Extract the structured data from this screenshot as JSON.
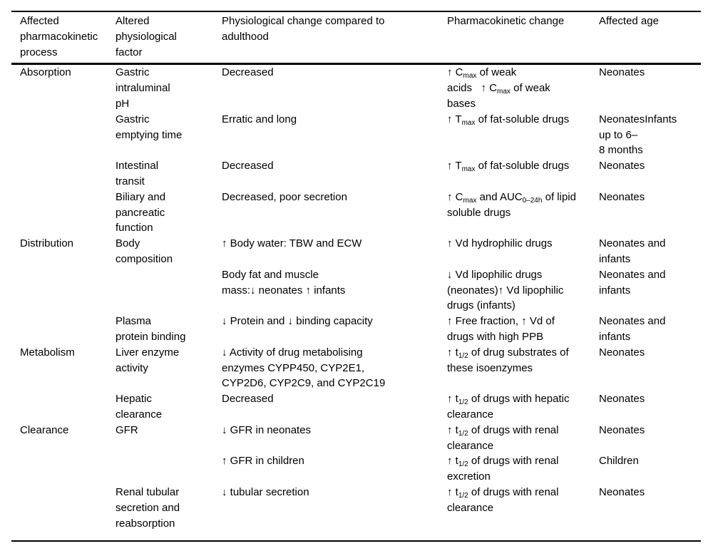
{
  "colors": {
    "text": "#000000",
    "background": "#ffffff",
    "rule": "#000000"
  },
  "table": {
    "columns": [
      {
        "name": "affected-pharmacokinetic-process",
        "label": "Affected pharmacokinetic process"
      },
      {
        "name": "altered-physiological-factor",
        "label": "Altered physiological factor"
      },
      {
        "name": "physiological-change",
        "label": "Physiological change compared to adulthood"
      },
      {
        "name": "pharmacokinetic-change",
        "label": "Pharmacokinetic change"
      },
      {
        "name": "affected-age",
        "label": "Affected age"
      }
    ],
    "rows": [
      {
        "cells": [
          "Absorption",
          "Gastric intraluminal pH",
          "Decreased",
          [
            {
              "t": "↑ C"
            },
            {
              "sub": "max"
            },
            {
              "t": " of weak acids   ↑ C"
            },
            {
              "sub": "max"
            },
            {
              "t": " of weak bases"
            }
          ],
          "Neonates"
        ]
      },
      {
        "cells": [
          "",
          "Gastric emptying time",
          "Erratic and long",
          [
            {
              "t": "↑ T"
            },
            {
              "sub": "max"
            },
            {
              "t": " of fat-soluble drugs"
            }
          ],
          [
            {
              "t": "NeonatesInfants"
            },
            {
              "br": true
            },
            {
              "t": "up to 6–"
            },
            {
              "br": true
            },
            {
              "t": "8 months"
            }
          ]
        ]
      },
      {
        "cells": [
          "",
          "Intestinal transit",
          "Decreased",
          [
            {
              "t": "↑ T"
            },
            {
              "sub": "max"
            },
            {
              "t": " of fat-soluble drugs"
            }
          ],
          "Neonates"
        ]
      },
      {
        "cells": [
          "",
          "Biliary and pancreatic function",
          "Decreased, poor secretion",
          [
            {
              "t": "↑ C"
            },
            {
              "sub": "max"
            },
            {
              "t": " and AUC"
            },
            {
              "sub": "0–24h"
            },
            {
              "t": " of lipid soluble drugs"
            }
          ],
          "Neonates"
        ]
      },
      {
        "cells": [
          "Distribution",
          "Body composition",
          "↑ Body water: TBW and ECW",
          "↑ Vd hydrophilic drugs",
          "Neonates and infants"
        ]
      },
      {
        "cells": [
          "",
          "",
          "Body fat and muscle mass:↓ neonates ↑ infants",
          "↓ Vd lipophilic drugs (neonates)↑ Vd lipophilic drugs (infants)",
          "Neonates and infants"
        ]
      },
      {
        "cells": [
          "",
          "Plasma protein binding",
          "↓ Protein and ↓ binding capacity",
          "↑ Free fraction, ↑ Vd of drugs with high PPB",
          "Neonates and infants"
        ]
      },
      {
        "cells": [
          "Metabolism",
          "Liver enzyme activity",
          "↓ Activity of drug metabolising enzymes CYPP450, CYP2E1, CYP2D6, CYP2C9, and CYP2C19",
          [
            {
              "t": "↑ t"
            },
            {
              "sub": "1/2"
            },
            {
              "t": " of drug substrates of these isoenzymes"
            }
          ],
          "Neonates"
        ]
      },
      {
        "cells": [
          "",
          "Hepatic clearance",
          "Decreased",
          [
            {
              "t": "↑ t"
            },
            {
              "sub": "1/2"
            },
            {
              "t": " of drugs with hepatic clearance"
            }
          ],
          "Neonates"
        ]
      },
      {
        "cells": [
          "Clearance",
          "GFR",
          "↓ GFR in neonates",
          [
            {
              "t": "↑ t"
            },
            {
              "sub": "1/2"
            },
            {
              "t": " of drugs with renal clearance"
            }
          ],
          "Neonates"
        ]
      },
      {
        "cells": [
          "",
          "",
          "↑ GFR in children",
          [
            {
              "t": "↑ t"
            },
            {
              "sub": "1/2"
            },
            {
              "t": " of drugs with renal excretion"
            }
          ],
          "Children"
        ]
      },
      {
        "cells": [
          "",
          "Renal tubular secretion and reabsorption",
          "↓ tubular secretion",
          [
            {
              "t": "↑ t"
            },
            {
              "sub": "1/2"
            },
            {
              "t": " of drugs with renal clearance"
            }
          ],
          "Neonates"
        ]
      }
    ]
  }
}
